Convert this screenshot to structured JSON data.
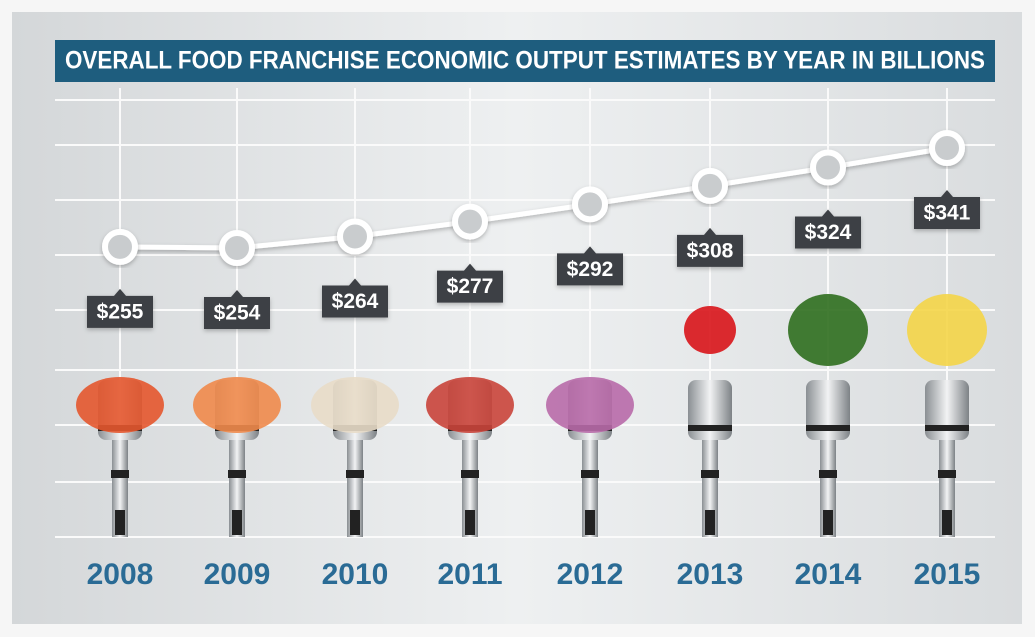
{
  "chart_data": {
    "type": "line",
    "title": "OVERALL FOOD FRANCHISE ECONOMIC OUTPUT ESTIMATES BY YEAR IN BILLIONS",
    "categories": [
      "2008",
      "2009",
      "2010",
      "2011",
      "2012",
      "2013",
      "2014",
      "2015"
    ],
    "values": [
      255,
      254,
      264,
      277,
      292,
      308,
      324,
      341
    ],
    "value_labels": [
      "$255",
      "$254",
      "$264",
      "$277",
      "$292",
      "$308",
      "$324",
      "$341"
    ],
    "color": "#ffffff"
  }
}
